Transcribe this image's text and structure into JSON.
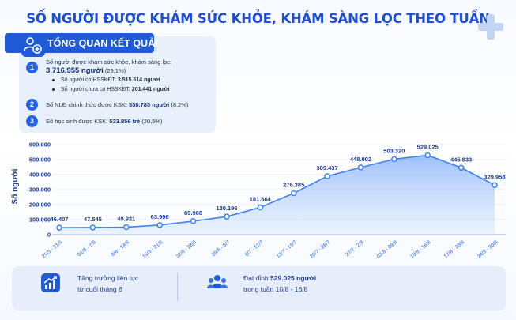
{
  "title": "SỐ NGƯỜI ĐƯỢC KHÁM SỨC KHỎE, KHÁM SÀNG LỌC THEO TUẦN",
  "overview": {
    "heading": "TỔNG QUAN KẾT QUẢ",
    "items": [
      {
        "num": "1",
        "text": "Số người được khám sức khỏe, khám sàng lọc:",
        "value": "3.716.955 người",
        "extra": "(29,1%)"
      },
      {
        "num": "2",
        "text": "Số NLĐ chính thức được KSK:",
        "value": "530.785 người",
        "extra": "(8,2%)"
      },
      {
        "num": "3",
        "text": "Số học sinh được KSK:",
        "value": "533.856 trẻ",
        "extra": "(20,5%)"
      }
    ],
    "subitems": [
      {
        "text": "Số người có HSSKĐT:",
        "value": "3.515.514 người"
      },
      {
        "text": "Số người chưa có HSSKĐT:",
        "value": "201.441 người"
      }
    ]
  },
  "footer": {
    "left_line1": "Tăng trưởng liên tục",
    "left_line2": "từ cuối tháng 6",
    "right_prefix": "Đạt đỉnh",
    "right_value": "529.025 người",
    "right_line2": "trong tuần 10/8 - 16/8"
  },
  "colors": {
    "accent": "#2563eb",
    "line": "#3b82f6",
    "title": "#1d4ed8"
  },
  "chart_data": {
    "type": "line",
    "ylabel": "Số người",
    "ylim": [
      0,
      600000
    ],
    "yticks": [
      0,
      100000,
      200000,
      300000,
      400000,
      500000,
      600000
    ],
    "ytick_labels": [
      "0",
      "100.000",
      "200.000",
      "300.000",
      "400.000",
      "500.000",
      "600.000"
    ],
    "categories": [
      "25/5 - 31/5",
      "01/6 - 7/6",
      "8/6 - 14/6",
      "15/6 - 21/6",
      "22/6 - 28/6",
      "29/6 - 5/7",
      "6/7 - 12/7",
      "13/7 - 19/7",
      "20/7 - 26/7",
      "27/7 - 2/8",
      "03/8 - 09/8",
      "10/8 - 16/8",
      "17/8 - 23/8",
      "24/8 - 30/8"
    ],
    "values": [
      46407,
      47545,
      49921,
      63996,
      89968,
      120196,
      181664,
      276385,
      389437,
      448002,
      503320,
      529025,
      445833,
      329958
    ],
    "value_labels": [
      "46.407",
      "47.545",
      "49.921",
      "63.996",
      "89.968",
      "120.196",
      "181.664",
      "276.385",
      "389.437",
      "448.002",
      "503.320",
      "529.025",
      "445.833",
      "329.958"
    ],
    "grid": true
  }
}
